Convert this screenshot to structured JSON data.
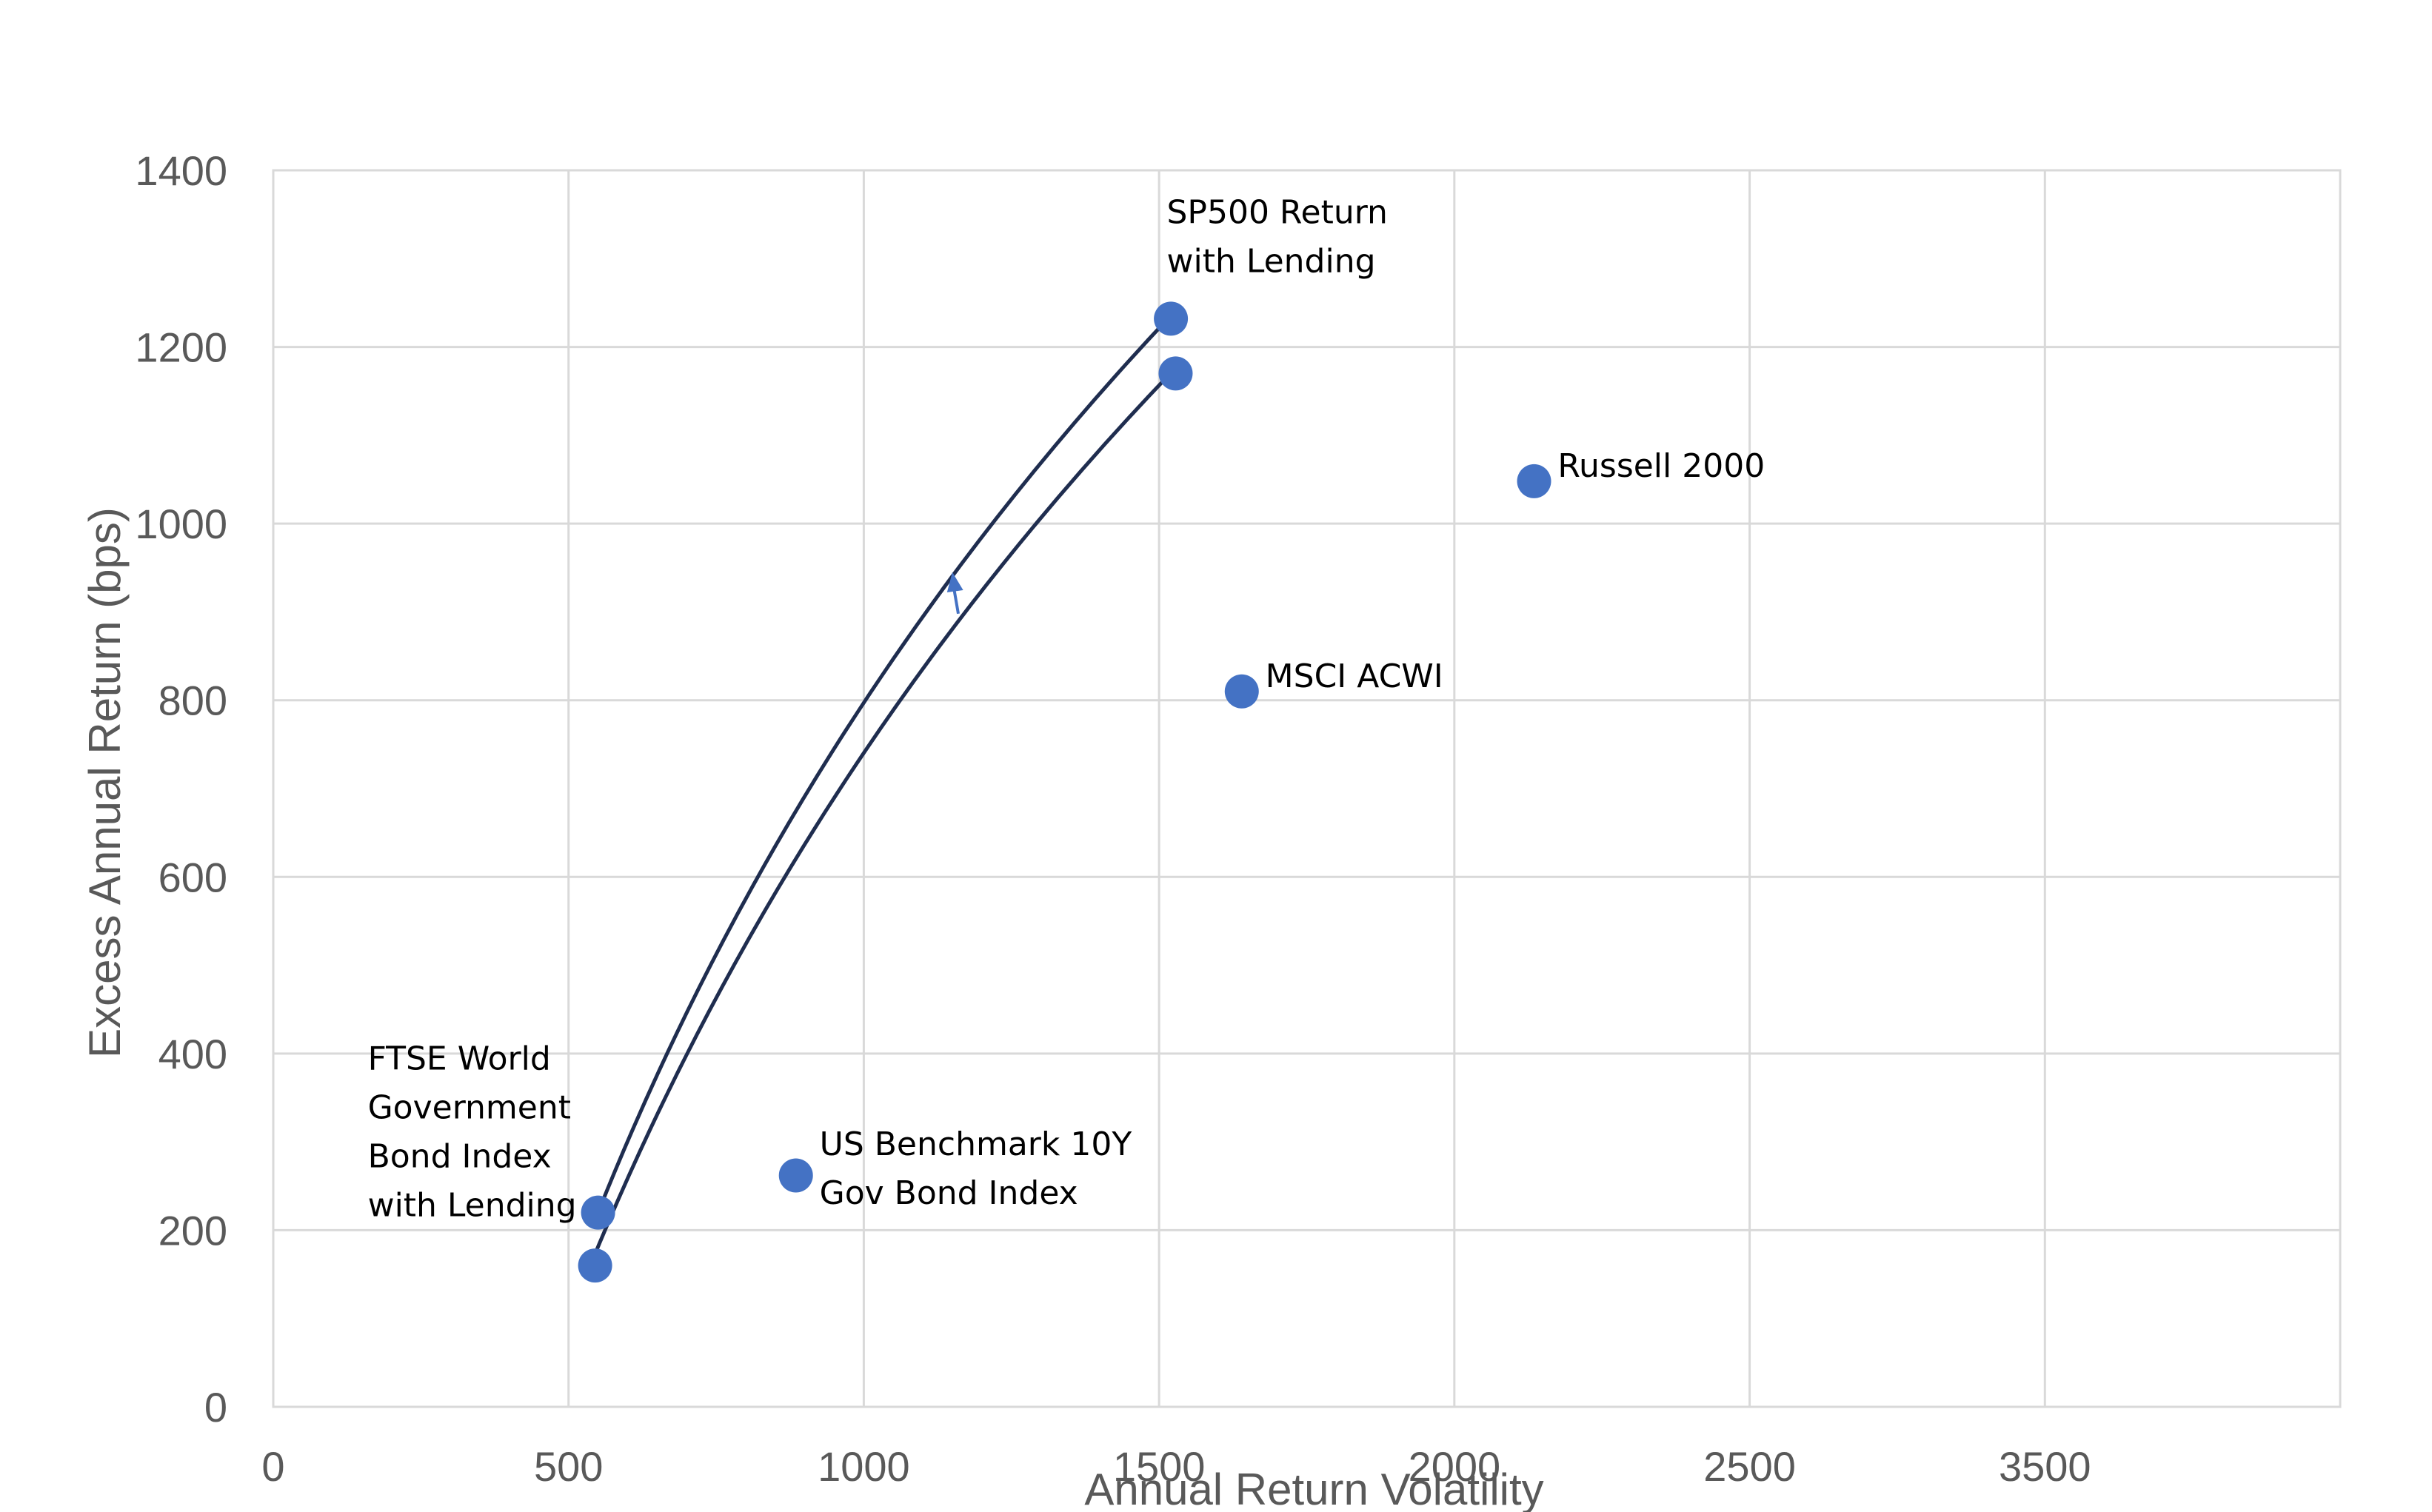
{
  "chart_data": {
    "type": "scatter",
    "title": "",
    "xlabel": "Annual Return Volatility",
    "ylabel": "Excess Annual Return (bps)",
    "xlim": [
      0,
      3500
    ],
    "ylim": [
      0,
      1400
    ],
    "x_ticks": [
      0,
      500,
      1000,
      1500,
      2000,
      2500,
      3500
    ],
    "x_tick_labels": [
      "0",
      "500",
      "1000",
      "1500",
      "2000",
      "2500",
      "3500"
    ],
    "y_ticks": [
      0,
      200,
      400,
      600,
      800,
      1000,
      1200,
      1400
    ],
    "y_tick_labels": [
      "0",
      "200",
      "400",
      "600",
      "800",
      "1000",
      "1200",
      "1400"
    ],
    "grid": true,
    "marker_color": "#4472c4",
    "curve_color": "#1f2d4f",
    "points": [
      {
        "x": 545,
        "y": 160
      },
      {
        "x": 550,
        "y": 220
      },
      {
        "x": 885,
        "y": 262
      },
      {
        "x": 1520,
        "y": 1232
      },
      {
        "x": 1528,
        "y": 1170
      },
      {
        "x": 1640,
        "y": 810
      },
      {
        "x": 2135,
        "y": 1048
      }
    ],
    "annotations": [
      {
        "text_lines": [
          "FTSE World",
          "Government",
          "Bond Index",
          "with Lending"
        ],
        "x": 160,
        "y": 382
      },
      {
        "text_lines": [
          "US Benchmark 10Y",
          "Gov Bond Index"
        ],
        "x": 925,
        "y": 285
      },
      {
        "text_lines": [
          "SP500 Return",
          "with Lending"
        ],
        "x": 1513,
        "y": 1340
      },
      {
        "text_lines": [
          "MSCI ACWI"
        ],
        "x": 1680,
        "y": 815
      },
      {
        "text_lines": [
          "Russell 2000"
        ],
        "x": 2175,
        "y": 1053
      }
    ],
    "curves": [
      {
        "from": {
          "x": 550,
          "y": 220
        },
        "to": {
          "x": 1515,
          "y": 1232
        }
      },
      {
        "from": {
          "x": 538,
          "y": 162
        },
        "to": {
          "x": 1522,
          "y": 1172
        }
      }
    ],
    "arrow": {
      "from": {
        "x": 1160,
        "y": 898
      },
      "to": {
        "x": 1150,
        "y": 945
      }
    }
  }
}
